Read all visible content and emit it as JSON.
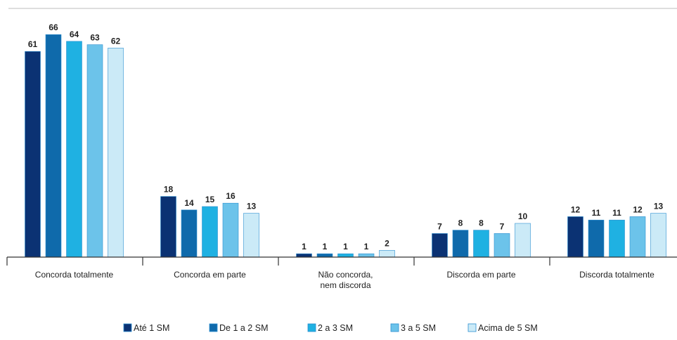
{
  "chart_data": {
    "type": "bar",
    "categories": [
      [
        "Concorda totalmente"
      ],
      [
        "Concorda em parte"
      ],
      [
        "Não concorda,",
        "nem discorda"
      ],
      [
        "Discorda em parte"
      ],
      [
        "Discorda totalmente"
      ]
    ],
    "series": [
      {
        "name": "Até 1 SM",
        "color": "#0b3273",
        "values": [
          61,
          18,
          1,
          7,
          12
        ]
      },
      {
        "name": "De 1 a 2 SM",
        "color": "#0f6aab",
        "values": [
          66,
          14,
          1,
          8,
          11
        ]
      },
      {
        "name": "2 a 3 SM",
        "color": "#1fb1e2",
        "values": [
          64,
          15,
          1,
          8,
          11
        ]
      },
      {
        "name": "3 a 5 SM",
        "color": "#6cc3ea",
        "values": [
          63,
          16,
          1,
          7,
          12
        ]
      },
      {
        "name": "Acima de 5 SM",
        "color": "#cbeaf7",
        "values": [
          62,
          13,
          2,
          10,
          13
        ]
      }
    ],
    "bar_heights": [
      [
        61,
        18,
        1,
        7,
        12
      ],
      [
        66,
        14,
        1,
        8,
        11
      ],
      [
        64,
        15,
        1,
        8,
        11
      ],
      [
        63,
        16,
        1,
        7,
        12
      ],
      [
        62,
        13,
        2,
        10,
        13
      ]
    ],
    "ylim": [
      0,
      70
    ],
    "grid": false,
    "legend": "bottom",
    "title": "",
    "xlabel": "",
    "ylabel": ""
  }
}
